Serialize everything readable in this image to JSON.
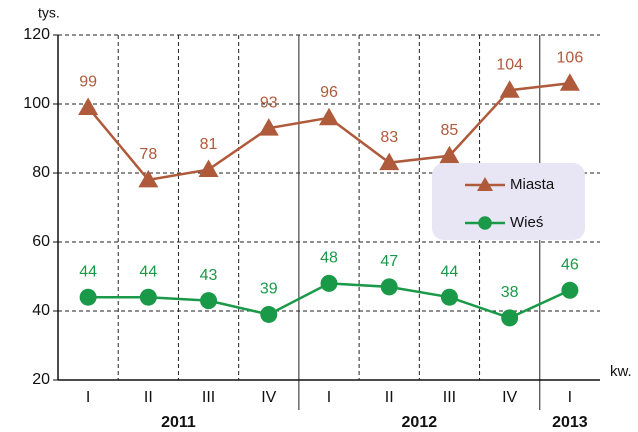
{
  "chart_data": {
    "type": "line",
    "y_unit_label": "tys.",
    "x_unit_label": "kw.",
    "categories": [
      "I",
      "II",
      "III",
      "IV",
      "I",
      "II",
      "III",
      "IV",
      "I"
    ],
    "year_labels": [
      "2011",
      "2012",
      "2013"
    ],
    "series": [
      {
        "name": "Miasta",
        "color": "#b05a3c",
        "marker": "triangle",
        "values": [
          99,
          78,
          81,
          93,
          96,
          83,
          85,
          104,
          106
        ]
      },
      {
        "name": "Wieś",
        "color": "#1a9a48",
        "marker": "circle",
        "values": [
          44,
          44,
          43,
          39,
          48,
          47,
          44,
          38,
          46
        ]
      }
    ],
    "ylim": [
      20,
      120
    ],
    "yticks": [
      20,
      40,
      60,
      80,
      100,
      120
    ],
    "grid": true,
    "legend": "right"
  }
}
